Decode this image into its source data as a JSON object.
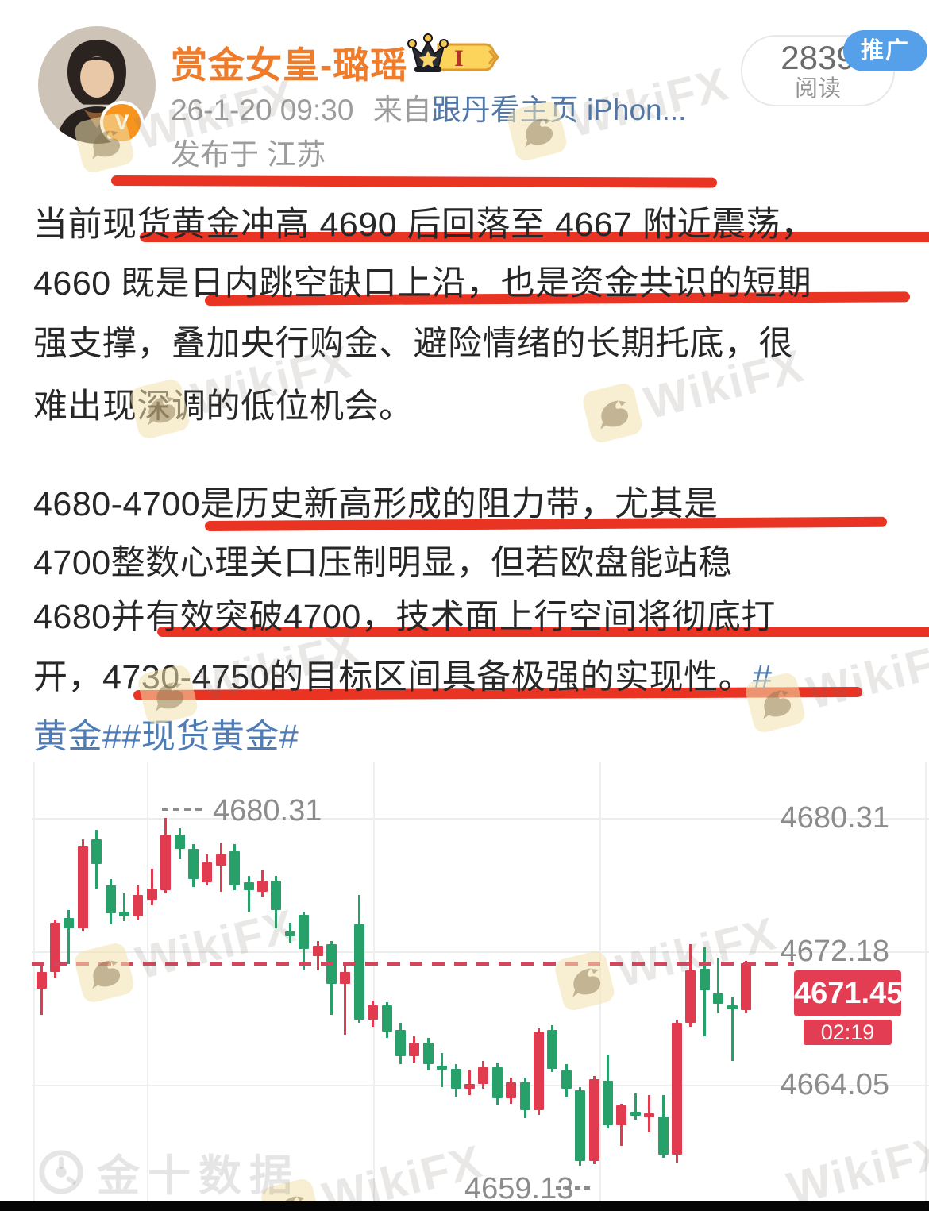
{
  "post": {
    "author": "赏金女皇-璐瑶",
    "verified_badge": "V",
    "vip_level": "I",
    "timestamp": "26-1-20 09:30",
    "source_prefix": "来自",
    "source_link": "跟丹看主页 iPhon...",
    "location": "发布于 江苏",
    "reads_count": "2839",
    "reads_label": "阅读",
    "promo_label": "推广",
    "paragraphs": [
      [
        [
          [
            "当前现货黄金冲高 4690 后回落至 4667 附近震荡，",
            "d"
          ]
        ],
        [
          [
            "4660 既是日内跳空缺口上沿，也是资金共识的短期",
            "d"
          ]
        ],
        [
          [
            "强支撑，叠加央行购金、避险情绪的长期托底，很",
            "d"
          ]
        ],
        [
          [
            "难出现深调的低位机会。",
            "d"
          ]
        ]
      ],
      [
        [
          [
            "4680-4700是历史新高形成的阻力带，尤其是",
            "d"
          ]
        ],
        [
          [
            "4700整数心理关口压制明显，但若欧盘能站稳",
            "d"
          ]
        ],
        [
          [
            "4680并有效突破4700，技术面上行空间将彻底打",
            "d"
          ]
        ],
        [
          [
            "开，4730-4750的目标区间具备极强的实现性。",
            "d"
          ],
          [
            "#",
            "b"
          ]
        ],
        [
          [
            "黄金##现货黄金#",
            "b"
          ]
        ]
      ]
    ]
  },
  "watermarks": {
    "wikifx": "WikiFX",
    "jin10": "金十数据"
  },
  "chart_data": {
    "type": "candlestick",
    "description": "spot gold intraday candlestick chart",
    "convention": "red = up candle, green = down candle",
    "y_axis_ticks": [
      "4680.31",
      "4672.18",
      "4664.05"
    ],
    "high_annotation": "4680.31",
    "low_annotation": "4659.13",
    "current_price": "4671.45",
    "countdown": "02:19",
    "ylim": [
      4656.5,
      4683.2
    ],
    "grid": true,
    "colors": {
      "up": "#e13b50",
      "down": "#27a169",
      "current_line": "#d6445e",
      "price_box": "#e23d52"
    },
    "candles": [
      [
        4669.9,
        4671.3,
        4668.3,
        4670.9
      ],
      [
        4670.9,
        4674.1,
        4670.6,
        4673.9
      ],
      [
        4674.2,
        4674.7,
        4671.4,
        4673.6
      ],
      [
        4673.6,
        4679.0,
        4673.4,
        4678.6
      ],
      [
        4679.0,
        4679.6,
        4676.0,
        4677.5
      ],
      [
        4676.2,
        4676.6,
        4673.8,
        4674.5
      ],
      [
        4674.6,
        4675.7,
        4674.0,
        4674.3
      ],
      [
        4674.3,
        4676.2,
        4674.1,
        4675.6
      ],
      [
        4675.3,
        4677.2,
        4675.0,
        4676.0
      ],
      [
        4675.9,
        4680.31,
        4675.7,
        4679.3
      ],
      [
        4679.3,
        4679.7,
        4677.8,
        4678.4
      ],
      [
        4678.4,
        4678.7,
        4676.1,
        4676.6
      ],
      [
        4676.4,
        4678.1,
        4676.2,
        4677.6
      ],
      [
        4677.4,
        4678.8,
        4675.8,
        4678.1
      ],
      [
        4678.3,
        4678.7,
        4675.9,
        4676.2
      ],
      [
        4676.4,
        4676.8,
        4674.6,
        4675.9
      ],
      [
        4675.8,
        4677.1,
        4675.5,
        4676.5
      ],
      [
        4676.5,
        4676.8,
        4673.6,
        4674.7
      ],
      [
        4673.4,
        4673.9,
        4672.7,
        4673.1
      ],
      [
        4674.4,
        4674.6,
        4671.0,
        4672.3
      ],
      [
        4671.9,
        4672.8,
        4671.0,
        4672.5
      ],
      [
        4672.6,
        4672.8,
        4668.3,
        4670.2
      ],
      [
        4670.2,
        4671.4,
        4667.1,
        4670.9
      ],
      [
        4673.8,
        4675.6,
        4667.8,
        4668.0
      ],
      [
        4668.0,
        4669.2,
        4667.6,
        4668.9
      ],
      [
        4668.9,
        4669.1,
        4666.9,
        4667.3
      ],
      [
        4667.4,
        4667.8,
        4665.3,
        4665.8
      ],
      [
        4665.8,
        4667.0,
        4665.4,
        4666.6
      ],
      [
        4666.6,
        4666.9,
        4664.9,
        4665.3
      ],
      [
        4665.2,
        4666.0,
        4663.9,
        4665.0
      ],
      [
        4665.0,
        4665.3,
        4663.3,
        4663.8
      ],
      [
        4663.8,
        4664.9,
        4663.4,
        4664.1
      ],
      [
        4664.1,
        4665.5,
        4663.8,
        4665.1
      ],
      [
        4665.1,
        4665.4,
        4662.8,
        4663.2
      ],
      [
        4663.2,
        4664.5,
        4662.9,
        4664.2
      ],
      [
        4664.2,
        4664.5,
        4662.0,
        4662.5
      ],
      [
        4662.5,
        4667.5,
        4662.2,
        4667.3
      ],
      [
        4667.4,
        4667.7,
        4664.8,
        4665.0
      ],
      [
        4664.9,
        4665.3,
        4663.3,
        4663.8
      ],
      [
        4663.7,
        4663.9,
        4659.13,
        4659.4
      ],
      [
        4659.4,
        4664.6,
        4659.2,
        4664.4
      ],
      [
        4664.3,
        4665.9,
        4661.4,
        4661.6
      ],
      [
        4661.6,
        4662.9,
        4660.3,
        4662.8
      ],
      [
        4662.4,
        4663.5,
        4661.9,
        4662.2
      ],
      [
        4662.2,
        4663.4,
        4661.2,
        4662.3
      ],
      [
        4662.1,
        4663.4,
        4659.6,
        4659.8
      ],
      [
        4659.8,
        4668.0,
        4659.3,
        4667.8
      ],
      [
        4667.8,
        4672.6,
        4667.6,
        4671.0
      ],
      [
        4671.1,
        4672.4,
        4667.0,
        4669.8
      ],
      [
        4669.6,
        4671.8,
        4668.4,
        4669.0
      ],
      [
        4668.9,
        4669.4,
        4665.5,
        4668.7
      ],
      [
        4668.6,
        4671.6,
        4668.4,
        4671.45
      ]
    ]
  }
}
